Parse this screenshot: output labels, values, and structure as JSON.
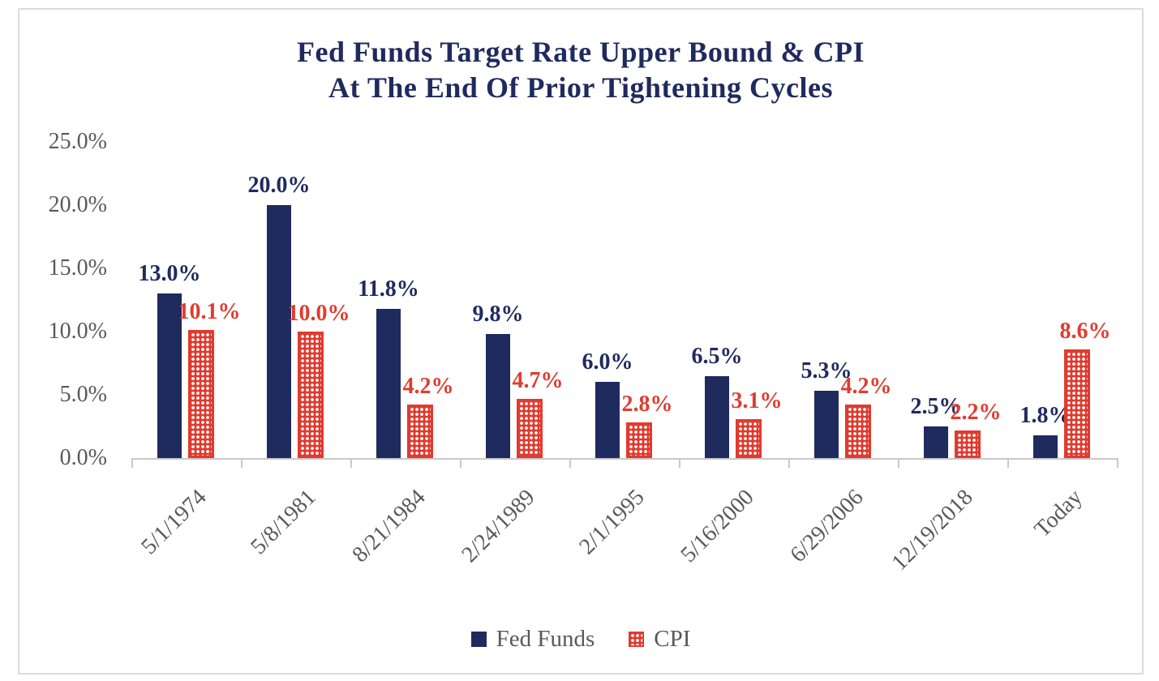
{
  "colors": {
    "fed_funds_navy": "#1F2A5E",
    "cpi_red": "#E23A2E",
    "cpi_label_red": "#E03C31",
    "axis_text_gray": "#595959",
    "axis_line_gray": "#C9C9C9",
    "card_border_gray": "#DCDCDC"
  },
  "chart_data": {
    "type": "bar",
    "title": "Fed Funds Target Rate Upper Bound & CPI",
    "subtitle": "At The End Of Prior Tightening Cycles",
    "categories": [
      "5/1/1974",
      "5/8/1981",
      "8/21/1984",
      "2/24/1989",
      "2/1/1995",
      "5/16/2000",
      "6/29/2006",
      "12/19/2018",
      "Today"
    ],
    "series": [
      {
        "name": "Fed Funds",
        "values": [
          13.0,
          20.0,
          11.8,
          9.8,
          6.0,
          6.5,
          5.3,
          2.5,
          1.8
        ],
        "data_labels": [
          "13.0%",
          "20.0%",
          "11.8%",
          "9.8%",
          "6.0%",
          "6.5%",
          "5.3%",
          "2.5%",
          "1.8%"
        ],
        "color": "#1F2A5E",
        "pattern": "solid"
      },
      {
        "name": "CPI",
        "values": [
          10.1,
          10.0,
          4.2,
          4.7,
          2.8,
          3.1,
          4.2,
          2.2,
          8.6
        ],
        "data_labels": [
          "10.1%",
          "10.0%",
          "4.2%",
          "4.7%",
          "2.8%",
          "3.1%",
          "4.2%",
          "2.2%",
          "8.6%"
        ],
        "color": "#E23A2E",
        "pattern": "dotted"
      }
    ],
    "y_axis": {
      "min": 0,
      "max": 25,
      "tick_step": 5,
      "tick_labels": [
        "0.0%",
        "5.0%",
        "10.0%",
        "15.0%",
        "20.0%",
        "25.0%"
      ]
    },
    "grid": false,
    "legend": {
      "position": "bottom",
      "entries": [
        "Fed Funds",
        "CPI"
      ]
    }
  }
}
